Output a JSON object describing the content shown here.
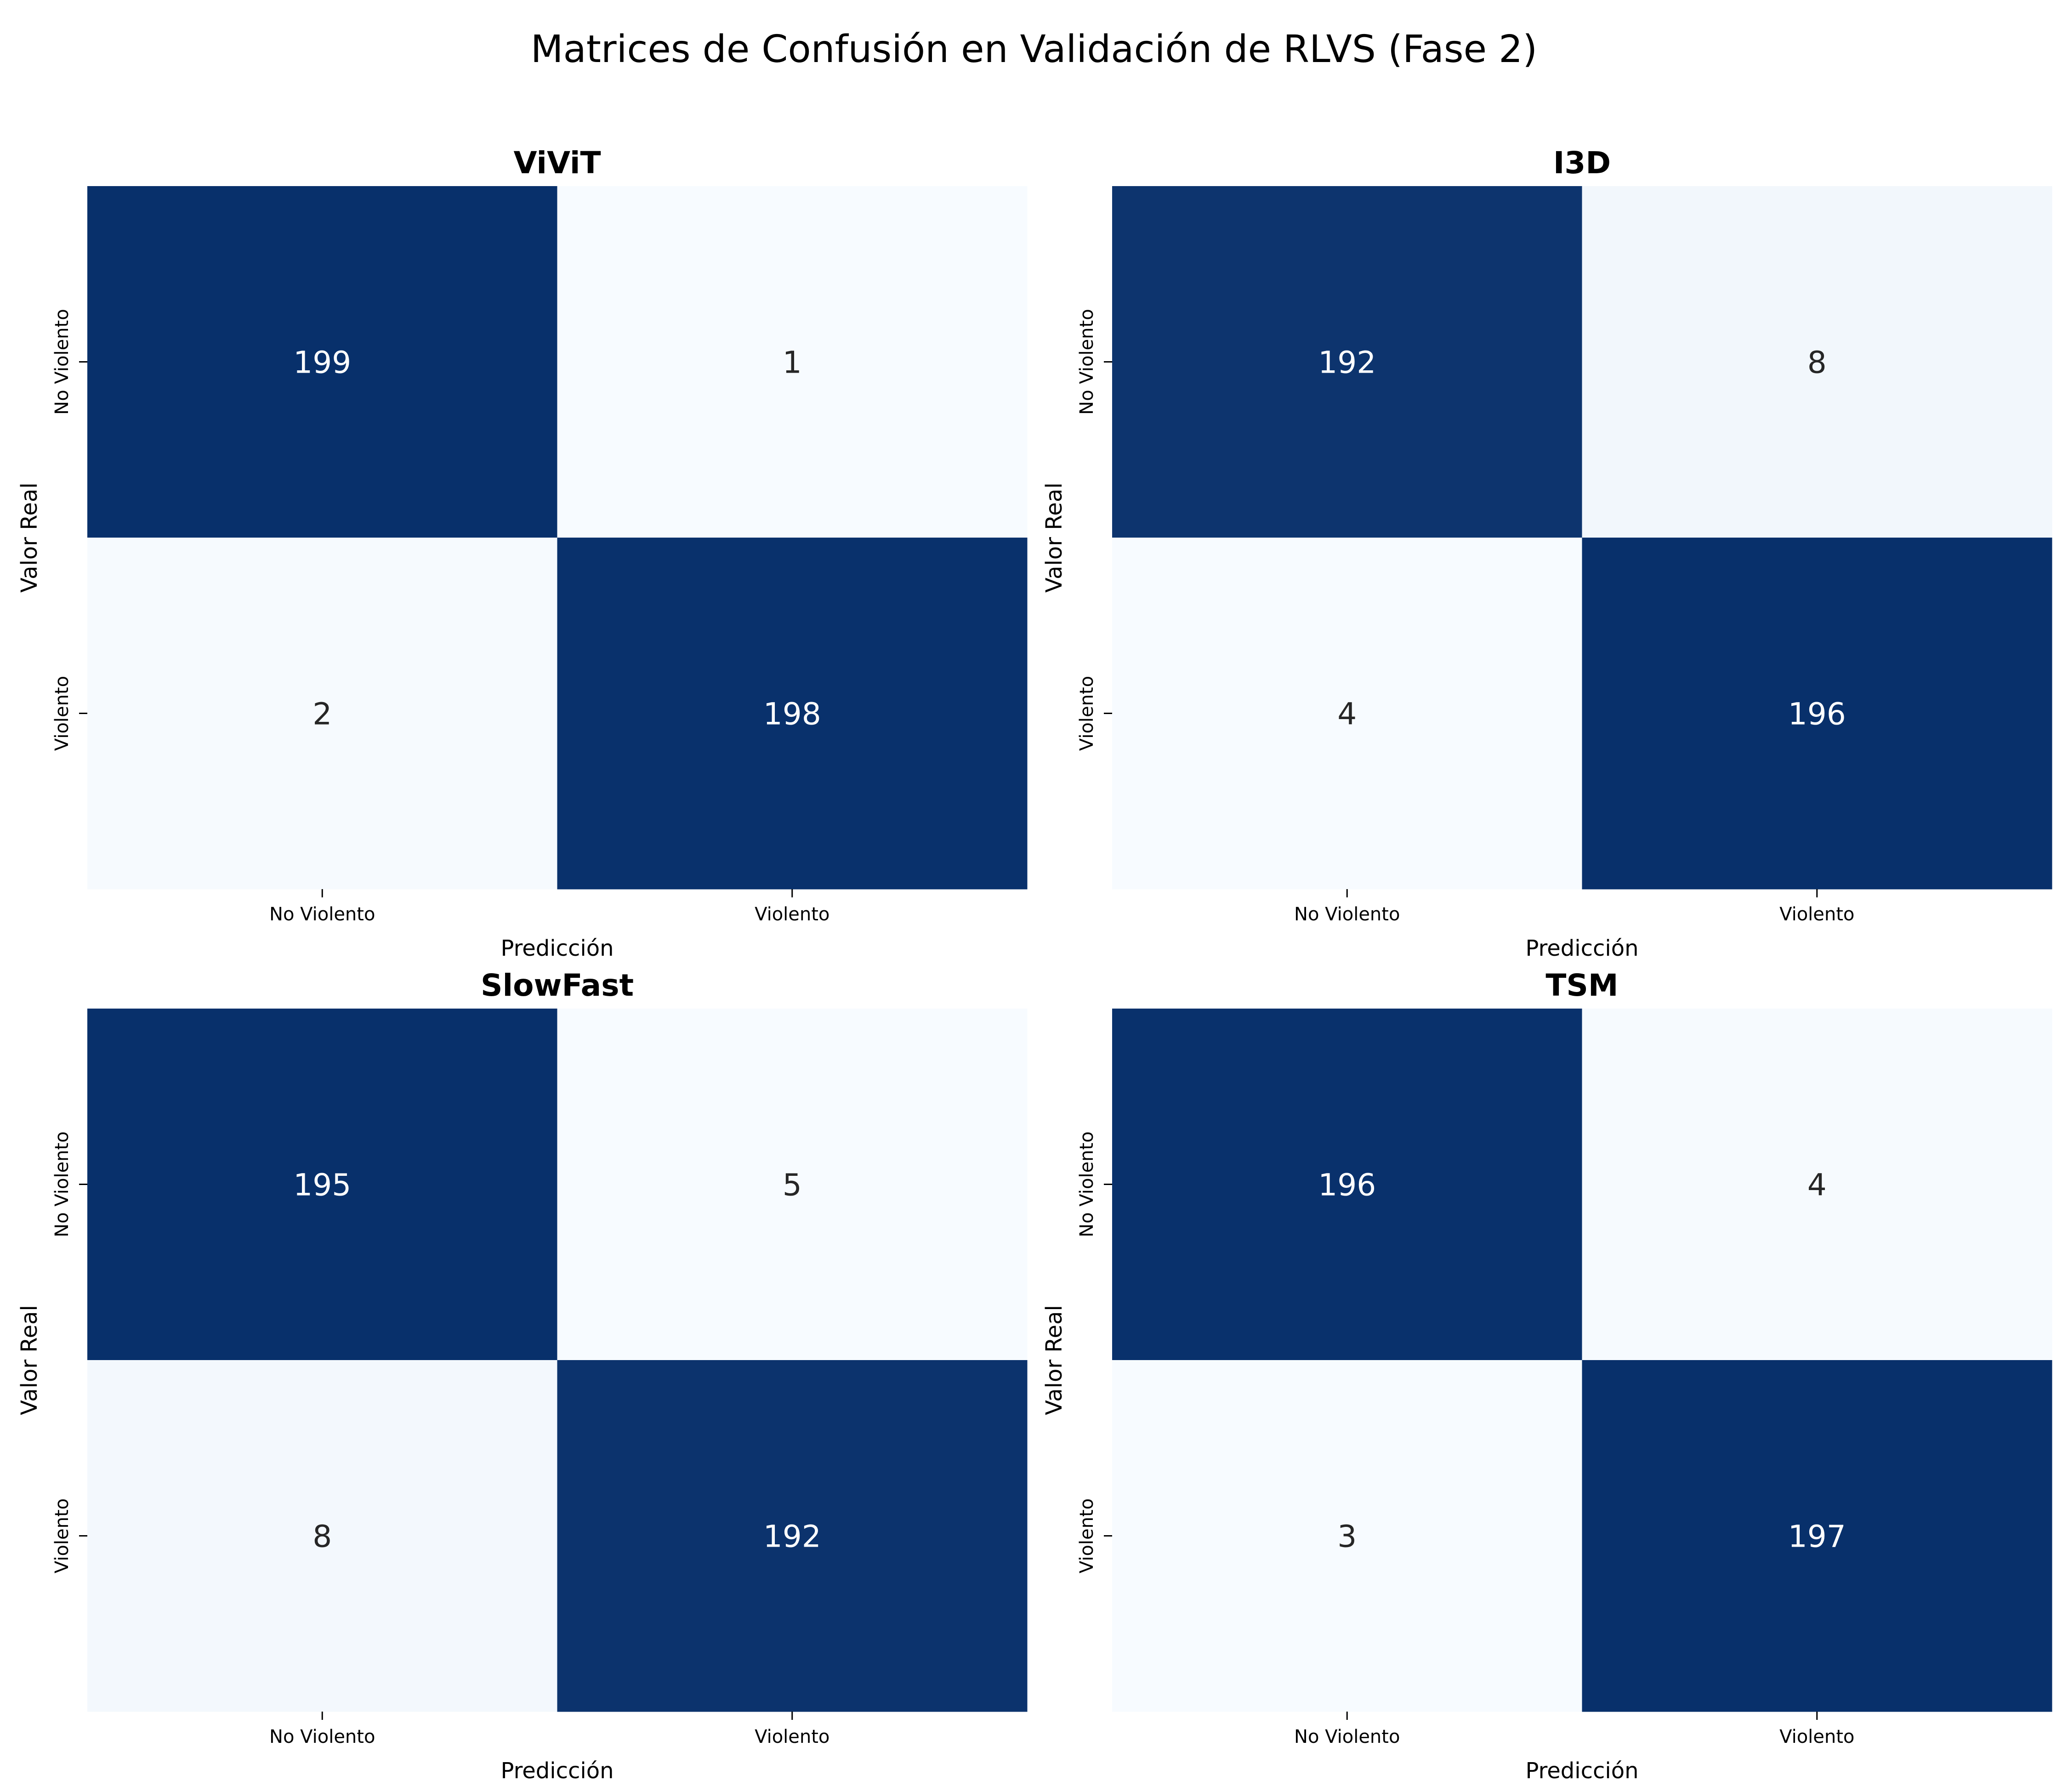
{
  "figure": {
    "title": "Matrices de Confusión en Validación de RLVS (Fase 2)"
  },
  "colors": {
    "low": "#f7fbff",
    "high": "#08306b",
    "text_on_dark": "#ffffff",
    "text_on_light": "#262626"
  },
  "chart_data": [
    {
      "type": "heatmap",
      "title": "ViViT",
      "xlabel": "Predicción",
      "ylabel": "Valor Real",
      "x_categories": [
        "No Violento",
        "Violento"
      ],
      "y_categories": [
        "No Violento",
        "Violento"
      ],
      "values": [
        [
          199,
          1
        ],
        [
          2,
          198
        ]
      ],
      "colormap": "Blues",
      "colorbar": false
    },
    {
      "type": "heatmap",
      "title": "I3D",
      "xlabel": "Predicción",
      "ylabel": "Valor Real",
      "x_categories": [
        "No Violento",
        "Violento"
      ],
      "y_categories": [
        "No Violento",
        "Violento"
      ],
      "values": [
        [
          192,
          8
        ],
        [
          4,
          196
        ]
      ],
      "colormap": "Blues",
      "colorbar": false
    },
    {
      "type": "heatmap",
      "title": "SlowFast",
      "xlabel": "Predicción",
      "ylabel": "Valor Real",
      "x_categories": [
        "No Violento",
        "Violento"
      ],
      "y_categories": [
        "No Violento",
        "Violento"
      ],
      "values": [
        [
          195,
          5
        ],
        [
          8,
          192
        ]
      ],
      "colormap": "Blues",
      "colorbar": false
    },
    {
      "type": "heatmap",
      "title": "TSM",
      "xlabel": "Predicción",
      "ylabel": "Valor Real",
      "x_categories": [
        "No Violento",
        "Violento"
      ],
      "y_categories": [
        "No Violento",
        "Violento"
      ],
      "values": [
        [
          196,
          4
        ],
        [
          3,
          197
        ]
      ],
      "colormap": "Blues",
      "colorbar": false
    }
  ]
}
